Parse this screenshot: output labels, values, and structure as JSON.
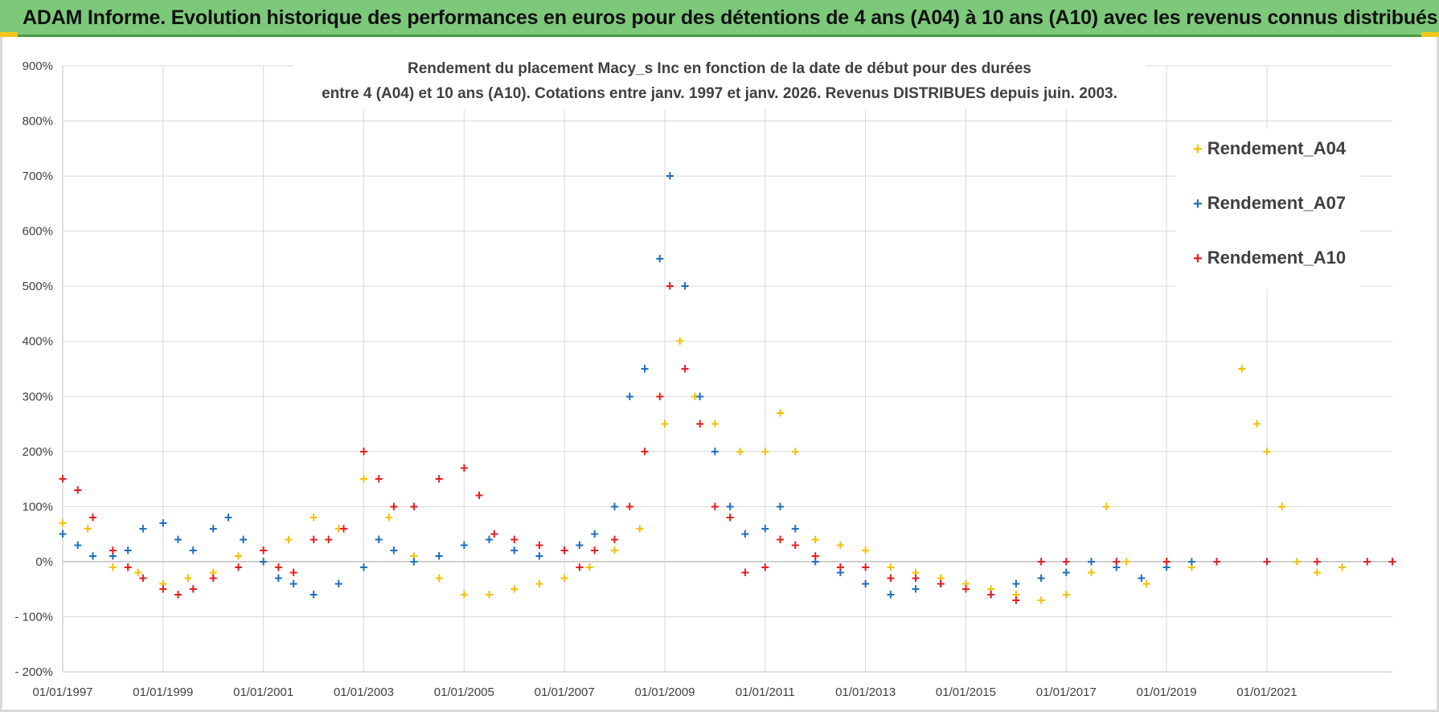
{
  "header": {
    "banner_text": "ADAM Informe. Evolution historique des performances en euros pour des détentions de 4 ans (A04) à 10 ans (A10) avec les revenus connus distribués"
  },
  "colors": {
    "banner_bg": "#7dc97a",
    "A04": "#f5c000",
    "A07": "#1f6fc0",
    "A10": "#e61e1e",
    "grid": "#d9d9d9"
  },
  "chart_data": {
    "type": "scatter",
    "title_line1": "Rendement du placement Macy_s Inc en fonction de la date de début pour des durées",
    "title_line2": "entre 4 (A04) et 10 ans (A10). Cotations entre janv. 1997 et janv. 2026. Revenus DISTRIBUES depuis juin. 2003.",
    "xlabel": "",
    "ylabel": "",
    "x_ticks": [
      "01/01/1997",
      "01/01/1999",
      "01/01/2001",
      "01/01/2003",
      "01/01/2005",
      "01/01/2007",
      "01/01/2009",
      "01/01/2011",
      "01/01/2013",
      "01/01/2015",
      "01/01/2017",
      "01/01/2019",
      "01/01/2021"
    ],
    "xlim": [
      1997.0,
      2023.5
    ],
    "y_ticks": [
      "900%",
      "800%",
      "700%",
      "600%",
      "500%",
      "400%",
      "300%",
      "200%",
      "100%",
      "0%",
      "- 100%",
      "- 200%"
    ],
    "ylim": [
      -200,
      900
    ],
    "legend_position": "top-right",
    "series": [
      {
        "name": "Rendement_A04",
        "x": [
          1997.0,
          1997.5,
          1998.0,
          1998.5,
          1999.0,
          1999.5,
          2000.0,
          2000.5,
          2001.0,
          2001.5,
          2002.0,
          2002.5,
          2003.0,
          2003.5,
          2004.0,
          2004.5,
          2005.0,
          2005.5,
          2006.0,
          2006.5,
          2007.0,
          2007.5,
          2008.0,
          2008.5,
          2009.0,
          2009.3,
          2009.6,
          2010.0,
          2010.5,
          2011.0,
          2011.3,
          2011.6,
          2012.0,
          2012.5,
          2013.0,
          2013.5,
          2014.0,
          2014.5,
          2015.0,
          2015.5,
          2016.0,
          2016.5,
          2017.0,
          2017.5,
          2017.8,
          2018.2,
          2018.6,
          2019.0,
          2019.5,
          2020.0,
          2020.5,
          2020.8,
          2021.0,
          2021.3,
          2021.6,
          2022.0,
          2022.5
        ],
        "y": [
          70,
          60,
          -10,
          -20,
          -40,
          -30,
          -20,
          10,
          0,
          40,
          80,
          60,
          150,
          80,
          10,
          -30,
          -60,
          -60,
          -50,
          -40,
          -30,
          -10,
          20,
          60,
          250,
          400,
          300,
          250,
          200,
          200,
          270,
          200,
          40,
          30,
          20,
          -10,
          -20,
          -30,
          -40,
          -50,
          -60,
          -70,
          -60,
          -20,
          100,
          0,
          -40,
          0,
          -10,
          0,
          350,
          250,
          200,
          100,
          0,
          -20,
          -10
        ]
      },
      {
        "name": "Rendement_A07",
        "x": [
          1997.0,
          1997.3,
          1997.6,
          1998.0,
          1998.3,
          1998.6,
          1999.0,
          1999.3,
          1999.6,
          2000.0,
          2000.3,
          2000.6,
          2001.0,
          2001.3,
          2001.6,
          2002.0,
          2002.5,
          2003.0,
          2003.3,
          2003.6,
          2004.0,
          2004.5,
          2005.0,
          2005.5,
          2006.0,
          2006.5,
          2007.0,
          2007.3,
          2007.6,
          2008.0,
          2008.3,
          2008.6,
          2008.9,
          2009.1,
          2009.4,
          2009.7,
          2010.0,
          2010.3,
          2010.6,
          2011.0,
          2011.3,
          2011.6,
          2012.0,
          2012.5,
          2013.0,
          2013.5,
          2014.0,
          2014.5,
          2015.0,
          2015.5,
          2016.0,
          2016.5,
          2017.0,
          2017.5,
          2018.0,
          2018.5,
          2019.0,
          2019.5
        ],
        "y": [
          50,
          30,
          10,
          10,
          20,
          60,
          70,
          40,
          20,
          60,
          80,
          40,
          0,
          -30,
          -40,
          -60,
          -40,
          -10,
          40,
          20,
          0,
          10,
          30,
          40,
          20,
          10,
          20,
          30,
          50,
          100,
          300,
          350,
          550,
          700,
          500,
          300,
          200,
          100,
          50,
          60,
          100,
          60,
          0,
          -20,
          -40,
          -60,
          -50,
          -40,
          -50,
          -60,
          -40,
          -30,
          -20,
          0,
          -10,
          -30,
          -10,
          0
        ]
      },
      {
        "name": "Rendement_A10",
        "x": [
          1997.0,
          1997.3,
          1997.6,
          1998.0,
          1998.3,
          1998.6,
          1999.0,
          1999.3,
          1999.6,
          2000.0,
          2000.5,
          2001.0,
          2001.3,
          2001.6,
          2002.0,
          2002.3,
          2002.6,
          2003.0,
          2003.3,
          2003.6,
          2004.0,
          2004.5,
          2005.0,
          2005.3,
          2005.6,
          2006.0,
          2006.5,
          2007.0,
          2007.3,
          2007.6,
          2008.0,
          2008.3,
          2008.6,
          2008.9,
          2009.1,
          2009.4,
          2009.7,
          2010.0,
          2010.3,
          2010.6,
          2011.0,
          2011.3,
          2011.6,
          2012.0,
          2012.5,
          2013.0,
          2013.5,
          2014.0,
          2014.5,
          2015.0,
          2015.5,
          2016.0,
          2016.5,
          2017.0,
          2018.0,
          2019.0,
          2020.0,
          2021.0,
          2022.0,
          2023.0,
          2023.5
        ],
        "y": [
          150,
          130,
          80,
          20,
          -10,
          -30,
          -50,
          -60,
          -50,
          -30,
          -10,
          20,
          -10,
          -20,
          40,
          40,
          60,
          200,
          150,
          100,
          100,
          150,
          170,
          120,
          50,
          40,
          30,
          20,
          -10,
          20,
          40,
          100,
          200,
          300,
          500,
          350,
          250,
          100,
          80,
          -20,
          -10,
          40,
          30,
          10,
          -10,
          -10,
          -30,
          -30,
          -40,
          -50,
          -60,
          -70,
          0,
          0,
          0,
          0,
          0,
          0,
          0,
          0,
          0
        ]
      }
    ]
  }
}
